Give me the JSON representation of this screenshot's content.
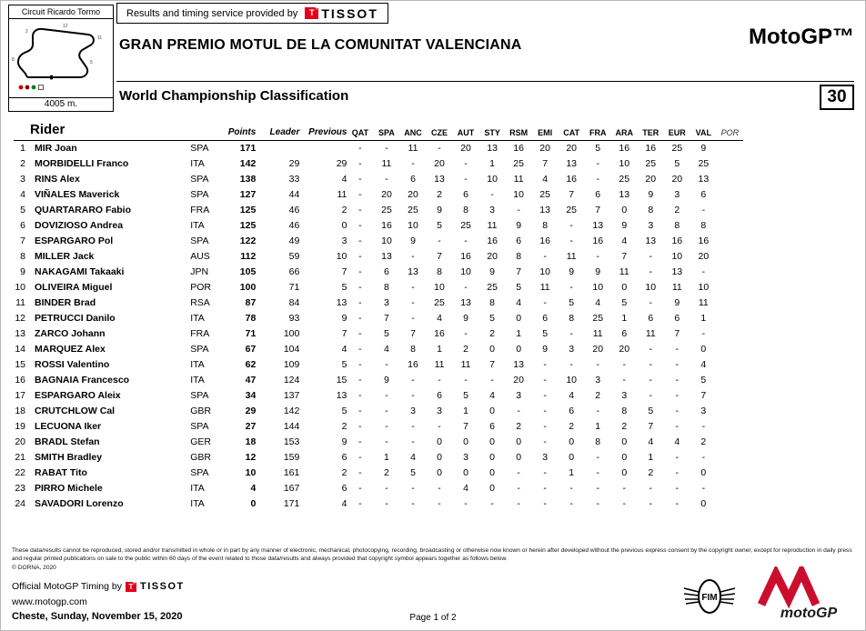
{
  "header": {
    "circuit_name": "Circuit Ricardo Tormo",
    "circuit_length": "4005 m.",
    "provided_by": "Results and timing service provided by",
    "tissot": "TISSOT",
    "event_title": "GRAN PREMIO MOTUL DE LA COMUNITAT VALENCIANA",
    "class_name": "MotoGP™",
    "report_title": "World Championship Classification",
    "sheet_number": "30"
  },
  "colors": {
    "tissot_red": "#e2001a",
    "motogp_red": "#cc0e2e",
    "legend_red": "#cc0000",
    "legend_green": "#007a33",
    "legend_darkred": "#8b0000"
  },
  "table": {
    "rider_header": "Rider",
    "points_header": "Points",
    "leader_header": "Leader",
    "previous_header": "Previous",
    "race_headers": [
      "QAT",
      "SPA",
      "ANC",
      "CZE",
      "AUT",
      "STY",
      "RSM",
      "EMI",
      "CAT",
      "FRA",
      "ARA",
      "TER",
      "EUR",
      "VAL",
      "POR"
    ],
    "rows": [
      {
        "pos": "1",
        "rider": "MIR Joan",
        "nation": "SPA",
        "points": "171",
        "leader": "",
        "previous": "",
        "races": [
          "-",
          "-",
          "11",
          "-",
          "20",
          "13",
          "16",
          "20",
          "20",
          "5",
          "16",
          "16",
          "25",
          "9",
          ""
        ]
      },
      {
        "pos": "2",
        "rider": "MORBIDELLI Franco",
        "nation": "ITA",
        "points": "142",
        "leader": "29",
        "previous": "29",
        "races": [
          "-",
          "11",
          "-",
          "20",
          "-",
          "1",
          "25",
          "7",
          "13",
          "-",
          "10",
          "25",
          "5",
          "25",
          ""
        ]
      },
      {
        "pos": "3",
        "rider": "RINS Alex",
        "nation": "SPA",
        "points": "138",
        "leader": "33",
        "previous": "4",
        "races": [
          "-",
          "-",
          "6",
          "13",
          "-",
          "10",
          "11",
          "4",
          "16",
          "-",
          "25",
          "20",
          "20",
          "13",
          ""
        ]
      },
      {
        "pos": "4",
        "rider": "VIÑALES Maverick",
        "nation": "SPA",
        "points": "127",
        "leader": "44",
        "previous": "11",
        "races": [
          "-",
          "20",
          "20",
          "2",
          "6",
          "-",
          "10",
          "25",
          "7",
          "6",
          "13",
          "9",
          "3",
          "6",
          ""
        ]
      },
      {
        "pos": "5",
        "rider": "QUARTARARO Fabio",
        "nation": "FRA",
        "points": "125",
        "leader": "46",
        "previous": "2",
        "races": [
          "-",
          "25",
          "25",
          "9",
          "8",
          "3",
          "-",
          "13",
          "25",
          "7",
          "0",
          "8",
          "2",
          "-",
          ""
        ]
      },
      {
        "pos": "6",
        "rider": "DOVIZIOSO Andrea",
        "nation": "ITA",
        "points": "125",
        "leader": "46",
        "previous": "0",
        "races": [
          "-",
          "16",
          "10",
          "5",
          "25",
          "11",
          "9",
          "8",
          "-",
          "13",
          "9",
          "3",
          "8",
          "8",
          ""
        ]
      },
      {
        "pos": "7",
        "rider": "ESPARGARO Pol",
        "nation": "SPA",
        "points": "122",
        "leader": "49",
        "previous": "3",
        "races": [
          "-",
          "10",
          "9",
          "-",
          "-",
          "16",
          "6",
          "16",
          "-",
          "16",
          "4",
          "13",
          "16",
          "16",
          ""
        ]
      },
      {
        "pos": "8",
        "rider": "MILLER Jack",
        "nation": "AUS",
        "points": "112",
        "leader": "59",
        "previous": "10",
        "races": [
          "-",
          "13",
          "-",
          "7",
          "16",
          "20",
          "8",
          "-",
          "11",
          "-",
          "7",
          "-",
          "10",
          "20",
          ""
        ]
      },
      {
        "pos": "9",
        "rider": "NAKAGAMI Takaaki",
        "nation": "JPN",
        "points": "105",
        "leader": "66",
        "previous": "7",
        "races": [
          "-",
          "6",
          "13",
          "8",
          "10",
          "9",
          "7",
          "10",
          "9",
          "9",
          "11",
          "-",
          "13",
          "-",
          ""
        ]
      },
      {
        "pos": "10",
        "rider": "OLIVEIRA Miguel",
        "nation": "POR",
        "points": "100",
        "leader": "71",
        "previous": "5",
        "races": [
          "-",
          "8",
          "-",
          "10",
          "-",
          "25",
          "5",
          "11",
          "-",
          "10",
          "0",
          "10",
          "11",
          "10",
          ""
        ]
      },
      {
        "pos": "11",
        "rider": "BINDER Brad",
        "nation": "RSA",
        "points": "87",
        "leader": "84",
        "previous": "13",
        "races": [
          "-",
          "3",
          "-",
          "25",
          "13",
          "8",
          "4",
          "-",
          "5",
          "4",
          "5",
          "-",
          "9",
          "11",
          ""
        ]
      },
      {
        "pos": "12",
        "rider": "PETRUCCI Danilo",
        "nation": "ITA",
        "points": "78",
        "leader": "93",
        "previous": "9",
        "races": [
          "-",
          "7",
          "-",
          "4",
          "9",
          "5",
          "0",
          "6",
          "8",
          "25",
          "1",
          "6",
          "6",
          "1",
          ""
        ]
      },
      {
        "pos": "13",
        "rider": "ZARCO Johann",
        "nation": "FRA",
        "points": "71",
        "leader": "100",
        "previous": "7",
        "races": [
          "-",
          "5",
          "7",
          "16",
          "-",
          "2",
          "1",
          "5",
          "-",
          "11",
          "6",
          "11",
          "7",
          "-",
          ""
        ]
      },
      {
        "pos": "14",
        "rider": "MARQUEZ Alex",
        "nation": "SPA",
        "points": "67",
        "leader": "104",
        "previous": "4",
        "races": [
          "-",
          "4",
          "8",
          "1",
          "2",
          "0",
          "0",
          "9",
          "3",
          "20",
          "20",
          "-",
          "-",
          "0",
          ""
        ]
      },
      {
        "pos": "15",
        "rider": "ROSSI Valentino",
        "nation": "ITA",
        "points": "62",
        "leader": "109",
        "previous": "5",
        "races": [
          "-",
          "-",
          "16",
          "11",
          "11",
          "7",
          "13",
          "-",
          "-",
          "-",
          "-",
          "-",
          "-",
          "4",
          ""
        ]
      },
      {
        "pos": "16",
        "rider": "BAGNAIA Francesco",
        "nation": "ITA",
        "points": "47",
        "leader": "124",
        "previous": "15",
        "races": [
          "-",
          "9",
          "-",
          "-",
          "-",
          "-",
          "20",
          "-",
          "10",
          "3",
          "-",
          "-",
          "-",
          "5",
          ""
        ]
      },
      {
        "pos": "17",
        "rider": "ESPARGARO Aleix",
        "nation": "SPA",
        "points": "34",
        "leader": "137",
        "previous": "13",
        "races": [
          "-",
          "-",
          "-",
          "6",
          "5",
          "4",
          "3",
          "-",
          "4",
          "2",
          "3",
          "-",
          "-",
          "7",
          ""
        ]
      },
      {
        "pos": "18",
        "rider": "CRUTCHLOW Cal",
        "nation": "GBR",
        "points": "29",
        "leader": "142",
        "previous": "5",
        "races": [
          "-",
          "-",
          "3",
          "3",
          "1",
          "0",
          "-",
          "-",
          "6",
          "-",
          "8",
          "5",
          "-",
          "3",
          ""
        ]
      },
      {
        "pos": "19",
        "rider": "LECUONA Iker",
        "nation": "SPA",
        "points": "27",
        "leader": "144",
        "previous": "2",
        "races": [
          "-",
          "-",
          "-",
          "-",
          "7",
          "6",
          "2",
          "-",
          "2",
          "1",
          "2",
          "7",
          "-",
          "-",
          ""
        ]
      },
      {
        "pos": "20",
        "rider": "BRADL Stefan",
        "nation": "GER",
        "points": "18",
        "leader": "153",
        "previous": "9",
        "races": [
          "-",
          "-",
          "-",
          "0",
          "0",
          "0",
          "0",
          "-",
          "0",
          "8",
          "0",
          "4",
          "4",
          "2",
          ""
        ]
      },
      {
        "pos": "21",
        "rider": "SMITH Bradley",
        "nation": "GBR",
        "points": "12",
        "leader": "159",
        "previous": "6",
        "races": [
          "-",
          "1",
          "4",
          "0",
          "3",
          "0",
          "0",
          "3",
          "0",
          "-",
          "0",
          "1",
          "-",
          "-",
          ""
        ]
      },
      {
        "pos": "22",
        "rider": "RABAT Tito",
        "nation": "SPA",
        "points": "10",
        "leader": "161",
        "previous": "2",
        "races": [
          "-",
          "2",
          "5",
          "0",
          "0",
          "0",
          "-",
          "-",
          "1",
          "-",
          "0",
          "2",
          "-",
          "0",
          ""
        ]
      },
      {
        "pos": "23",
        "rider": "PIRRO Michele",
        "nation": "ITA",
        "points": "4",
        "leader": "167",
        "previous": "6",
        "races": [
          "-",
          "-",
          "-",
          "-",
          "4",
          "0",
          "-",
          "-",
          "-",
          "-",
          "-",
          "-",
          "-",
          "-",
          ""
        ]
      },
      {
        "pos": "24",
        "rider": "SAVADORI Lorenzo",
        "nation": "ITA",
        "points": "0",
        "leader": "171",
        "previous": "4",
        "races": [
          "-",
          "-",
          "-",
          "-",
          "-",
          "-",
          "-",
          "-",
          "-",
          "-",
          "-",
          "-",
          "-",
          "0",
          ""
        ]
      }
    ]
  },
  "footer": {
    "legal": "These data/results cannot be reproduced, stored and/or transmitted in whole or in part by any manner of electronic, mechanical, photocopying, recording, broadcasting or otherwise now known or herein after developed without the previous express consent by the copyright owner, except for reproduction in daily press and regular printed publications on sale to the public within 60 days of the event related to those data/results and always provided that copyright symbol appears together as follows below.",
    "copyright": "© DORNA, 2020",
    "timing_by": "Official MotoGP Timing by",
    "timing_brand": "TISSOT",
    "website": "www.motogp.com",
    "location_date": "Cheste, Sunday, November 15, 2020",
    "page_info": "Page 1 of 2"
  },
  "logos": {
    "fim": "FIM",
    "motogp": "motoGP"
  }
}
